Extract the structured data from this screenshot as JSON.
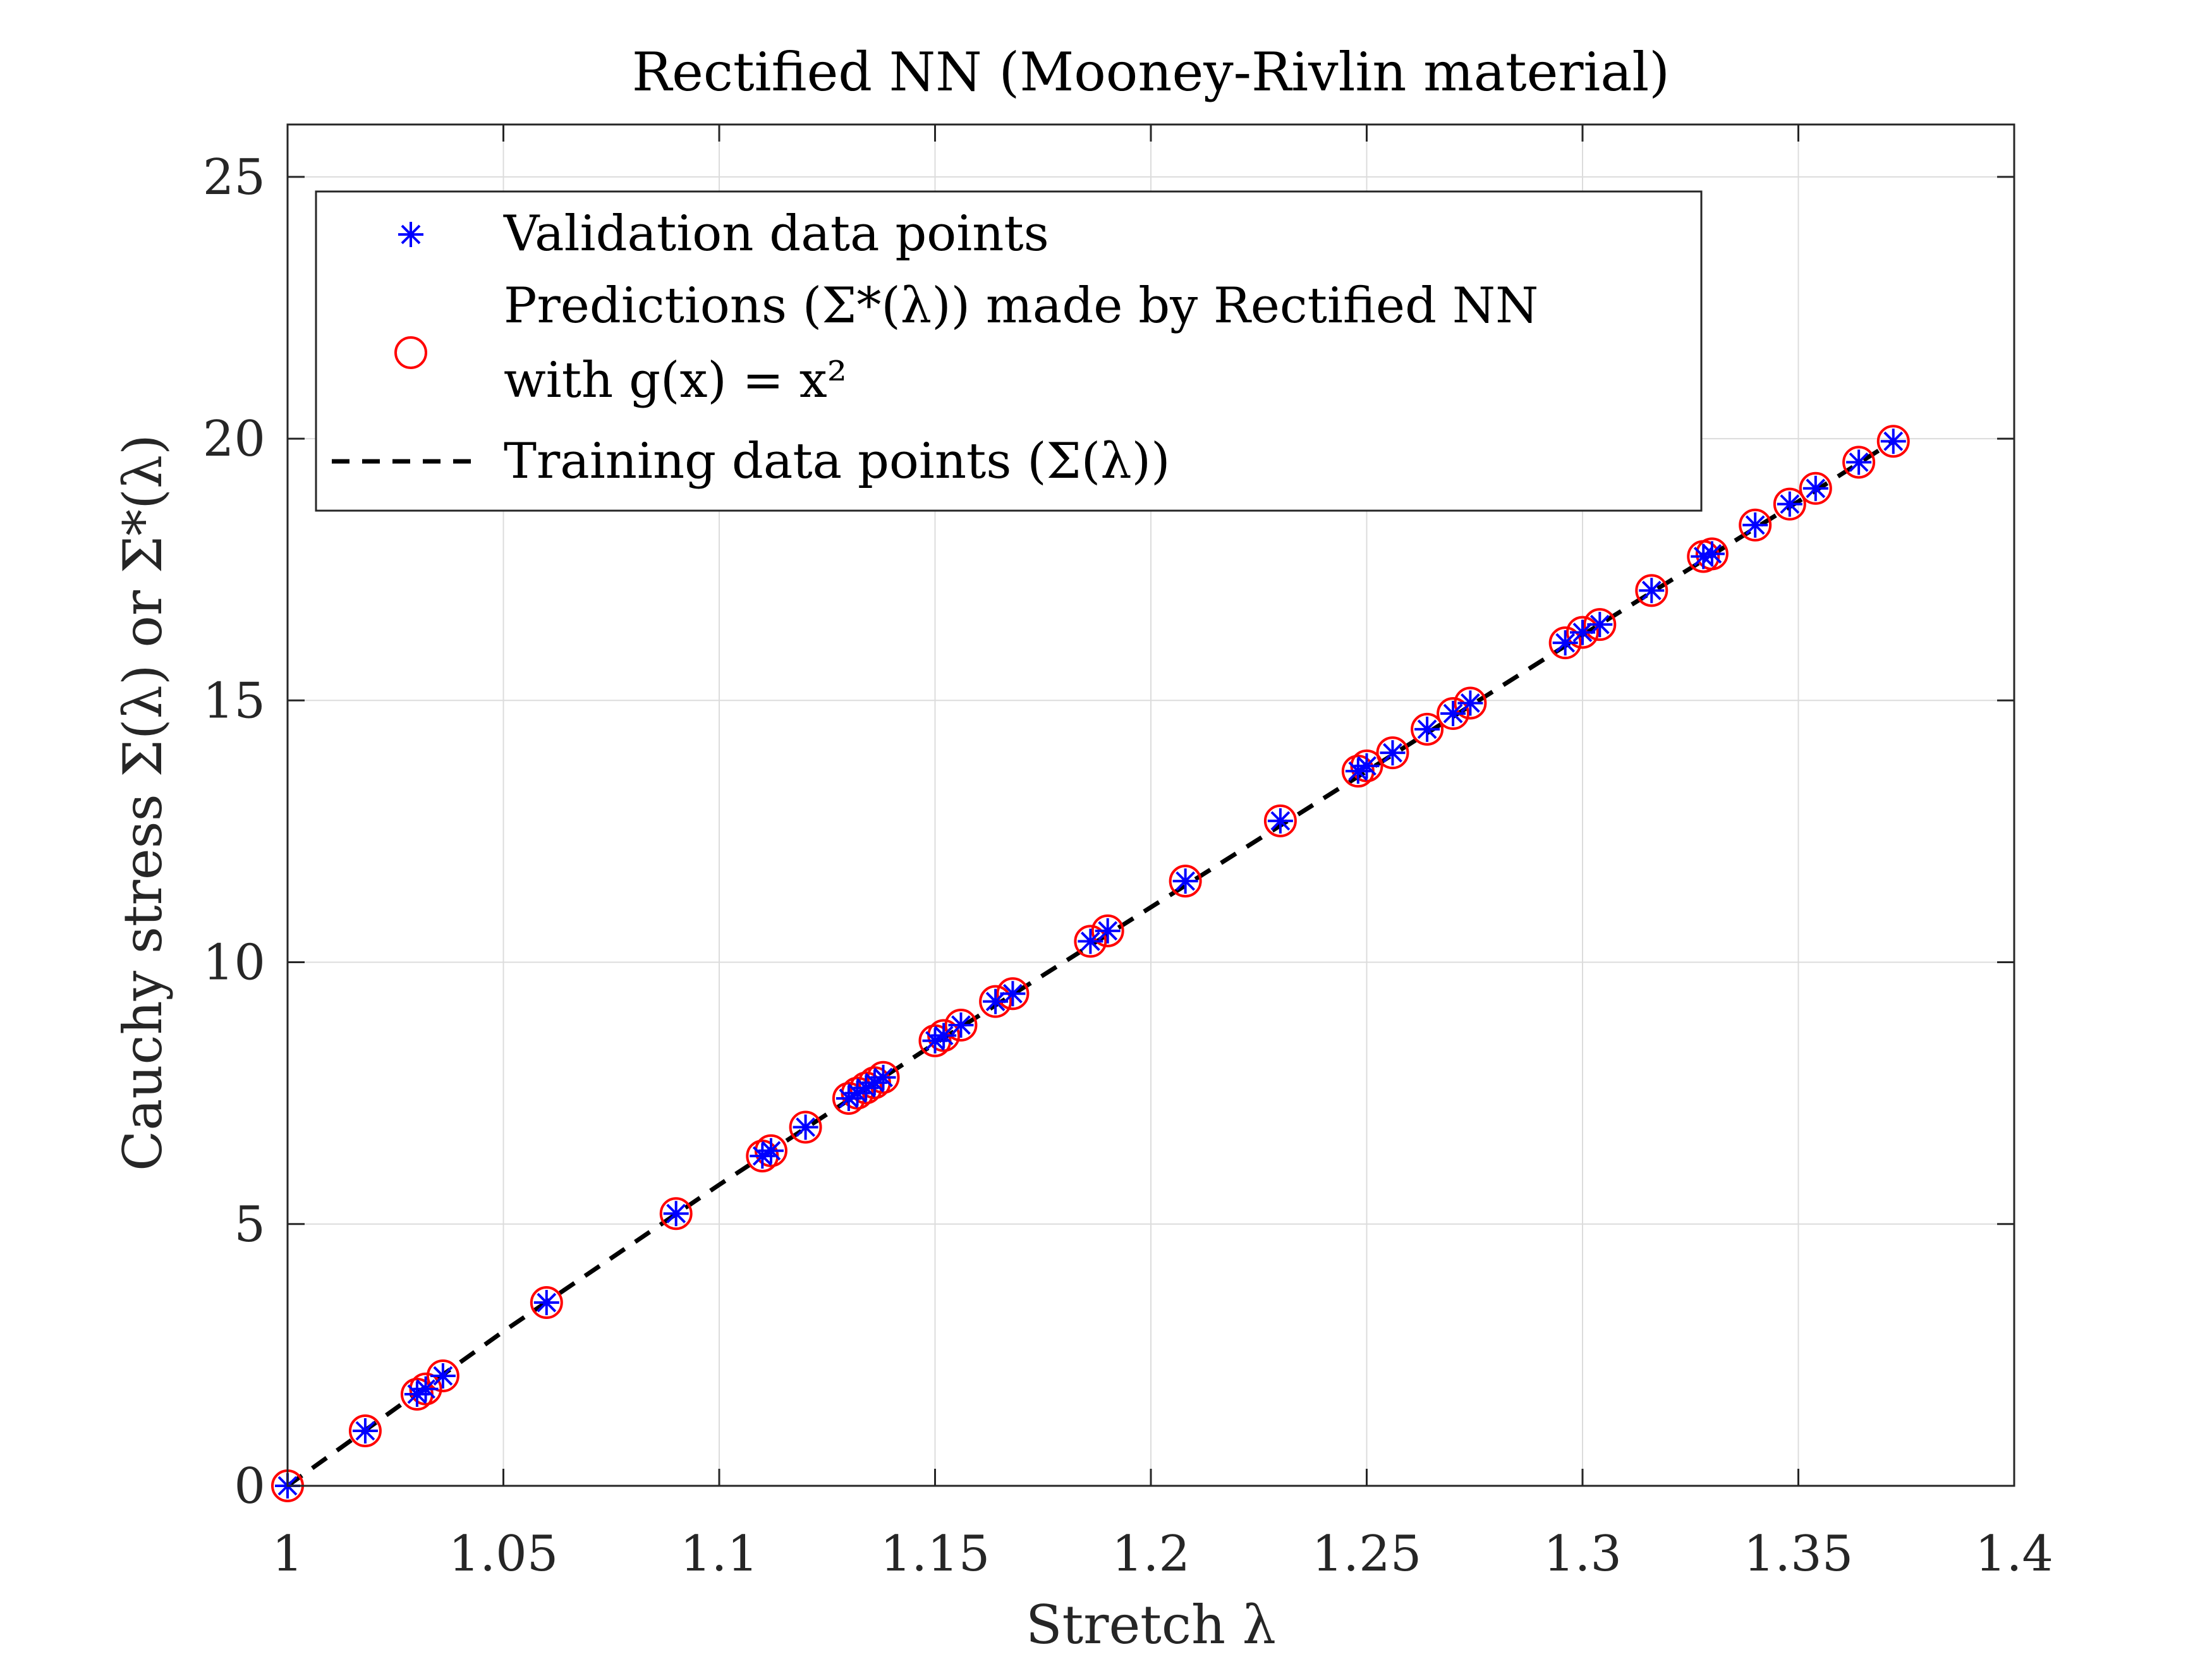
{
  "chart_data": {
    "type": "scatter",
    "title": "Rectified NN (Mooney-Rivlin material)",
    "xlabel": "Stretch λ",
    "ylabel": "Cauchy stress Σ(λ) or Σ*(λ)",
    "xlim": [
      1,
      1.4
    ],
    "ylim": [
      0,
      26
    ],
    "xticks": [
      "1",
      "1.05",
      "1.1",
      "1.15",
      "1.2",
      "1.25",
      "1.3",
      "1.35",
      "1.4"
    ],
    "yticks": [
      "0",
      "5",
      "10",
      "15",
      "20",
      "25"
    ],
    "grid": true,
    "legend_position": "top-left",
    "legend": {
      "validation": "Validation data points",
      "predictions_line1": "Predictions (Σ*(λ)) made by Rectified NN",
      "predictions_line2": "with g(x) = x²",
      "training": "Training data points (Σ(λ))"
    },
    "colors": {
      "validation": "#0000ff",
      "predictions": "#ff0000",
      "training": "#000000"
    },
    "series": [
      {
        "name": "Validation data points",
        "marker": "asterisk",
        "x": [
          1.0,
          1.018,
          1.03,
          1.032,
          1.036,
          1.06,
          1.09,
          1.11,
          1.112,
          1.12,
          1.13,
          1.132,
          1.134,
          1.136,
          1.138,
          1.15,
          1.152,
          1.156,
          1.164,
          1.168,
          1.186,
          1.19,
          1.208,
          1.23,
          1.248,
          1.25,
          1.256,
          1.264,
          1.27,
          1.274,
          1.296,
          1.3,
          1.304,
          1.316,
          1.328,
          1.33,
          1.34,
          1.348,
          1.354,
          1.364,
          1.372
        ],
        "y": [
          0.0,
          1.05,
          1.75,
          1.85,
          2.1,
          3.5,
          5.2,
          6.3,
          6.4,
          6.85,
          7.4,
          7.5,
          7.6,
          7.7,
          7.8,
          8.5,
          8.6,
          8.8,
          9.25,
          9.4,
          10.4,
          10.6,
          11.55,
          12.7,
          13.65,
          13.75,
          14.0,
          14.45,
          14.75,
          14.95,
          16.1,
          16.3,
          16.45,
          17.1,
          17.75,
          17.8,
          18.35,
          18.75,
          19.05,
          19.55,
          19.95
        ]
      },
      {
        "name": "Predictions (Σ*(λ)) made by Rectified NN with g(x) = x²",
        "marker": "circle",
        "x": [
          1.0,
          1.018,
          1.03,
          1.032,
          1.036,
          1.06,
          1.09,
          1.11,
          1.112,
          1.12,
          1.13,
          1.132,
          1.134,
          1.136,
          1.138,
          1.15,
          1.152,
          1.156,
          1.164,
          1.168,
          1.186,
          1.19,
          1.208,
          1.23,
          1.248,
          1.25,
          1.256,
          1.264,
          1.27,
          1.274,
          1.296,
          1.3,
          1.304,
          1.316,
          1.328,
          1.33,
          1.34,
          1.348,
          1.354,
          1.364,
          1.372
        ],
        "y": [
          0.0,
          1.05,
          1.75,
          1.85,
          2.1,
          3.5,
          5.2,
          6.3,
          6.4,
          6.85,
          7.4,
          7.5,
          7.6,
          7.7,
          7.8,
          8.5,
          8.6,
          8.8,
          9.25,
          9.4,
          10.4,
          10.6,
          11.55,
          12.7,
          13.65,
          13.75,
          14.0,
          14.45,
          14.75,
          14.95,
          16.1,
          16.3,
          16.45,
          17.1,
          17.75,
          17.8,
          18.35,
          18.75,
          19.05,
          19.55,
          19.95
        ]
      },
      {
        "name": "Training data points (Σ(λ))",
        "marker": "dashed-line",
        "x": [
          1.0,
          1.05,
          1.1,
          1.15,
          1.2,
          1.25,
          1.3,
          1.35,
          1.372
        ],
        "y": [
          0.0,
          2.95,
          5.75,
          8.45,
          11.05,
          13.65,
          16.25,
          18.8,
          19.95
        ]
      }
    ]
  }
}
